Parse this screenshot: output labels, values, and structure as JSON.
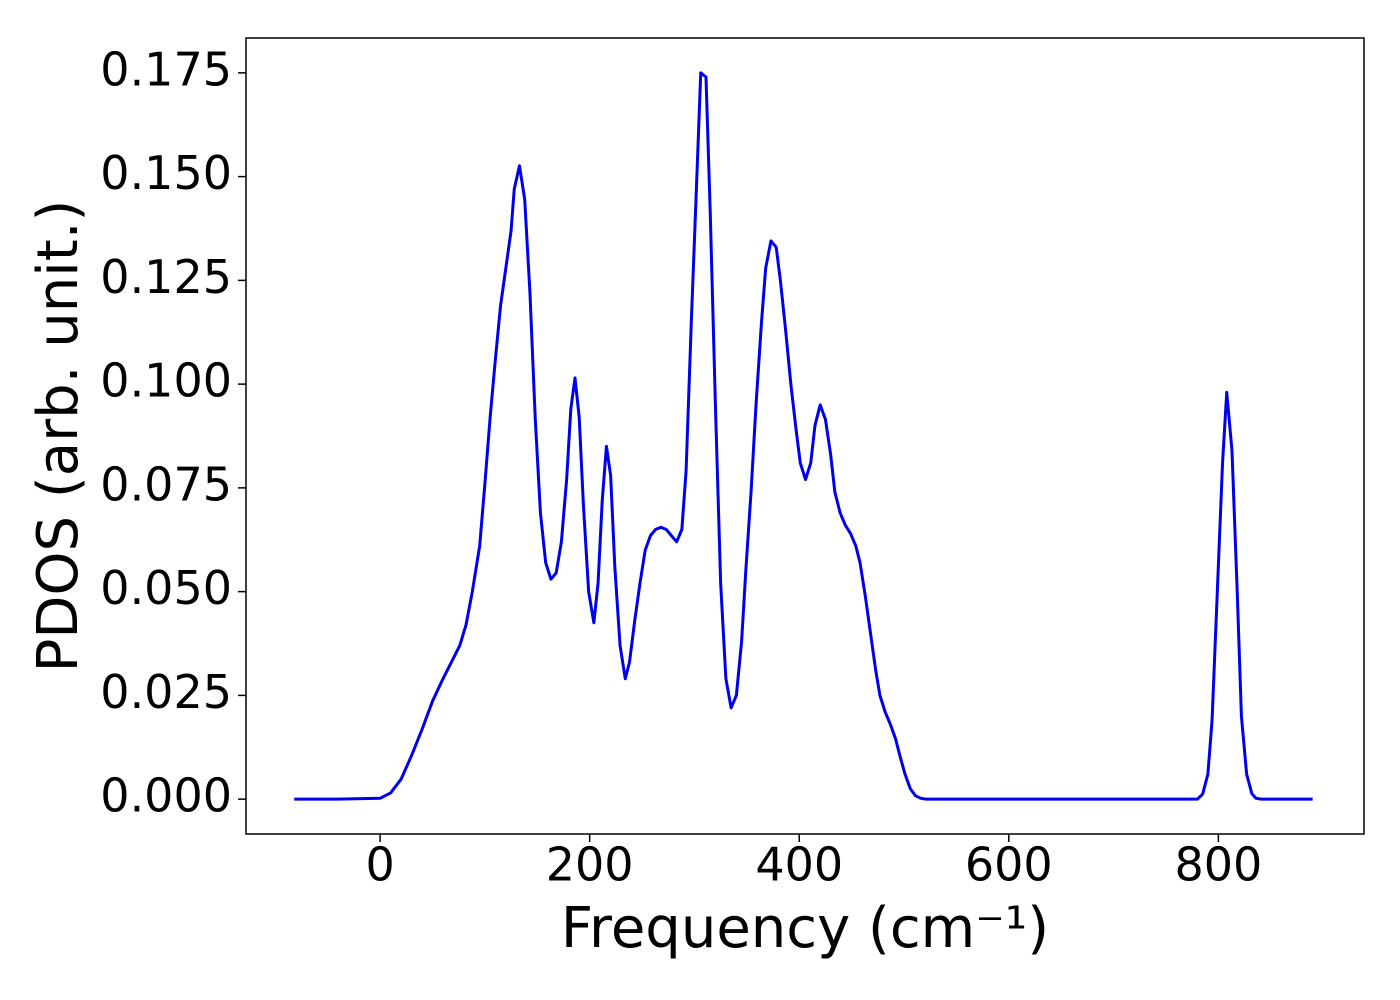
{
  "chart_data": {
    "type": "line",
    "x_label": "Frequency (cm⁻¹)",
    "y_label": "PDOS (arb. unit.)",
    "xlim": [
      -128,
      939
    ],
    "ylim": [
      -0.0084,
      0.1834
    ],
    "xticks": [
      0,
      200,
      400,
      600,
      800
    ],
    "yticks": [
      {
        "value": 0,
        "label": "0.000"
      },
      {
        "value": 0.025,
        "label": "0.025"
      },
      {
        "value": 0.05,
        "label": "0.050"
      },
      {
        "value": 0.075,
        "label": "0.075"
      },
      {
        "value": 0.1,
        "label": "0.100"
      },
      {
        "value": 0.125,
        "label": "0.125"
      },
      {
        "value": 0.15,
        "label": "0.150"
      },
      {
        "value": 0.175,
        "label": "0.175"
      }
    ],
    "grid": false,
    "series": [
      {
        "name": "PDOS",
        "color": "#0000ee",
        "x": [
          -82,
          -40,
          0,
          10,
          20,
          30,
          40,
          50,
          60,
          70,
          76,
          82,
          88,
          95,
          100,
          105,
          110,
          115,
          120,
          125,
          128,
          133,
          138,
          143,
          148,
          153,
          158,
          163,
          168,
          173,
          178,
          182,
          186,
          190,
          194,
          199,
          204,
          208,
          212,
          216,
          220,
          224,
          229,
          234,
          238,
          243,
          248,
          253,
          258,
          263,
          268,
          273,
          278,
          283,
          288,
          292,
          297,
          302,
          306,
          311,
          315,
          320,
          325,
          330,
          335,
          340,
          345,
          349,
          354,
          359,
          364,
          368,
          373,
          378,
          382,
          387,
          392,
          397,
          401,
          406,
          411,
          415,
          420,
          425,
          430,
          434,
          439,
          444,
          449,
          454,
          458,
          463,
          468,
          473,
          477,
          482,
          487,
          492,
          496,
          501,
          506,
          511,
          516,
          521,
          780,
          785,
          790,
          794,
          799,
          804,
          808,
          813,
          818,
          822,
          827,
          832,
          836,
          841,
          890
        ],
        "values": [
          0,
          0,
          0.0002,
          0.0015,
          0.0048,
          0.0105,
          0.0168,
          0.0236,
          0.029,
          0.034,
          0.037,
          0.042,
          0.05,
          0.061,
          0.076,
          0.092,
          0.106,
          0.119,
          0.128,
          0.137,
          0.147,
          0.1526,
          0.1445,
          0.122,
          0.092,
          0.069,
          0.057,
          0.053,
          0.0545,
          0.062,
          0.077,
          0.094,
          0.1015,
          0.092,
          0.071,
          0.05,
          0.0425,
          0.052,
          0.072,
          0.085,
          0.078,
          0.056,
          0.037,
          0.029,
          0.033,
          0.043,
          0.052,
          0.06,
          0.0635,
          0.065,
          0.0655,
          0.065,
          0.0635,
          0.062,
          0.065,
          0.079,
          0.115,
          0.148,
          0.175,
          0.174,
          0.142,
          0.095,
          0.052,
          0.029,
          0.022,
          0.025,
          0.038,
          0.055,
          0.074,
          0.096,
          0.115,
          0.128,
          0.1345,
          0.133,
          0.125,
          0.113,
          0.1,
          0.089,
          0.081,
          0.077,
          0.081,
          0.09,
          0.095,
          0.0915,
          0.083,
          0.074,
          0.069,
          0.066,
          0.064,
          0.061,
          0.057,
          0.049,
          0.04,
          0.031,
          0.025,
          0.021,
          0.018,
          0.0145,
          0.0105,
          0.006,
          0.0025,
          0.0008,
          0.0002,
          0,
          0,
          0.0012,
          0.006,
          0.019,
          0.05,
          0.081,
          0.098,
          0.084,
          0.05,
          0.02,
          0.006,
          0.0013,
          0.0002,
          0,
          0
        ]
      }
    ]
  }
}
